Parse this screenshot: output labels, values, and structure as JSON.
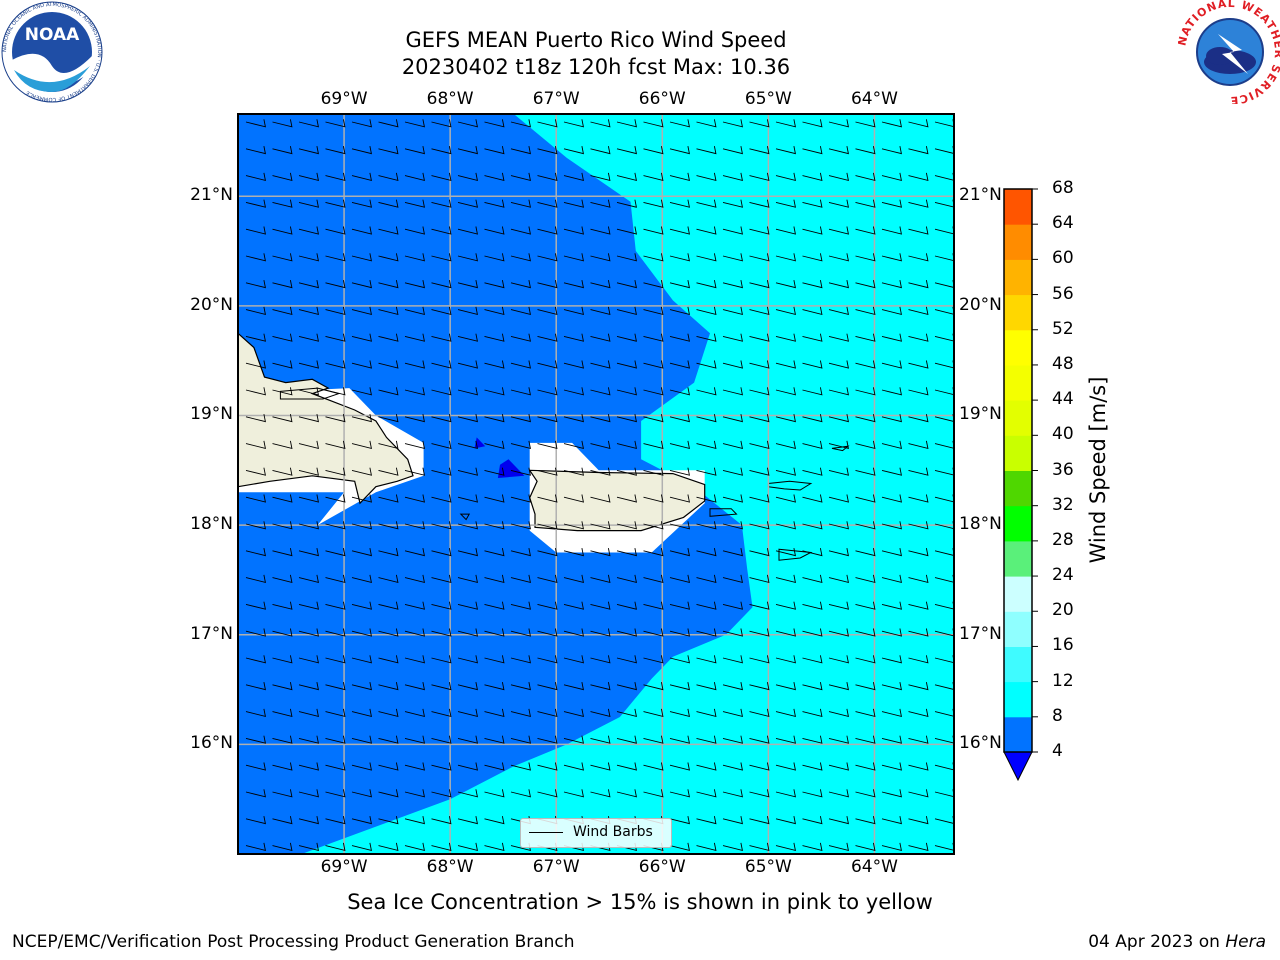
{
  "header": {
    "title_line1": "GEFS MEAN Puerto Rico Wind Speed",
    "title_line2": "20230402 t18z 120h fcst   Max: 10.36"
  },
  "logos": {
    "left": "NOAA",
    "left_ring_text": "NATIONAL OCEANIC AND ATMOSPHERIC ADMINISTRATION · U.S. DEPARTMENT OF COMMERCE",
    "right_ring_text": "NATIONAL WEATHER SERVICE"
  },
  "map": {
    "lon_labels": [
      "69°W",
      "68°W",
      "67°W",
      "66°W",
      "65°W",
      "64°W"
    ],
    "lat_labels": [
      "21°N",
      "20°N",
      "19°N",
      "18°N",
      "17°N",
      "16°N"
    ],
    "lon_range": [
      -70.0,
      -63.25
    ],
    "lat_range": [
      15.0,
      21.75
    ],
    "grid": true,
    "legend_label": "Wind Barbs",
    "barb_direction": "east-northeast"
  },
  "colorbar": {
    "title": "Wind Speed [m/s]",
    "ticks": [
      "4",
      "8",
      "12",
      "16",
      "20",
      "24",
      "28",
      "32",
      "36",
      "40",
      "44",
      "48",
      "52",
      "56",
      "60",
      "64",
      "68"
    ],
    "colors": [
      "#0166ff",
      "#00ffff",
      "#3ffbff",
      "#8fffff",
      "#ccffff",
      "#5af07a",
      "#01ff00",
      "#4fd700",
      "#c9ff00",
      "#e3ff00",
      "#f4ff00",
      "#ffff00",
      "#ffd700",
      "#ffb300",
      "#ff8c00",
      "#ff5500",
      "#ff2200",
      "#ff0000"
    ],
    "under_color": "#0000ff"
  },
  "colors": {
    "band_4_8": "#0173ff",
    "band_8_12": "#00ffff",
    "band_below_4": "#0000ee",
    "land": "#efefdc"
  },
  "footer": {
    "sea_ice_note": "Sea Ice Concentration > 15% is shown in pink to yellow",
    "left": "NCEP/EMC/Verification Post Processing Product Generation Branch",
    "right_prefix": "04 Apr 2023 on ",
    "right_machine": "Hera"
  }
}
